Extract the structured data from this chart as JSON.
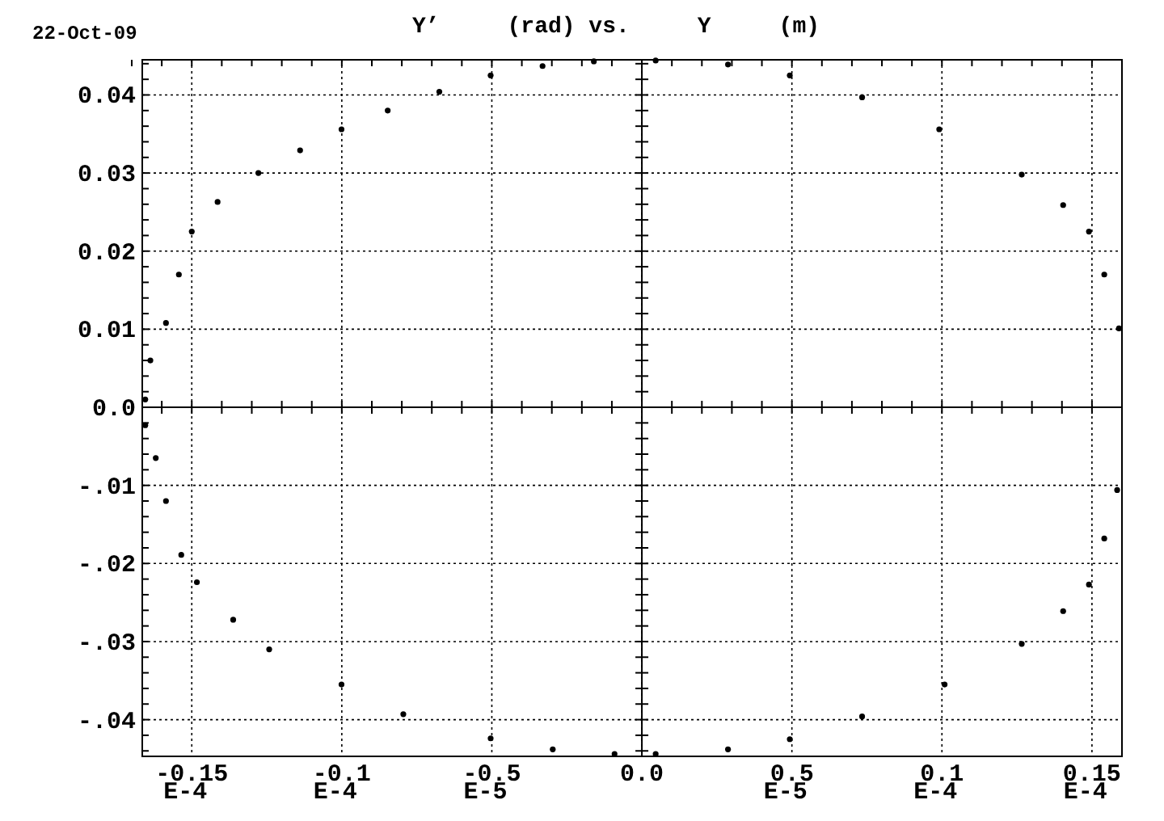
{
  "chart_data": {
    "type": "scatter",
    "title": "Y’     (rad) vs.     Y     (m)",
    "annotations": [
      "22-Oct-09"
    ],
    "x": [
      -1.655e-05,
      -1.638e-05,
      -1.586e-05,
      -1.543e-05,
      -1.5e-05,
      -1.414e-05,
      -1.278e-05,
      -1.139e-05,
      -1.001e-05,
      -8.47e-06,
      -6.75e-06,
      -5.04e-06,
      -3.31e-06,
      -1.6e-06,
      4.6e-07,
      2.87e-06,
      4.93e-06,
      7.34e-06,
      9.91e-06,
      1.266e-05,
      1.404e-05,
      1.49e-05,
      1.541e-05,
      1.59e-05,
      1.584e-05,
      1.541e-05,
      1.49e-05,
      1.404e-05,
      1.266e-05,
      1.009e-05,
      7.34e-06,
      4.93e-06,
      2.87e-06,
      4.6e-07,
      -9.1e-07,
      -2.97e-06,
      -5.04e-06,
      -7.95e-06,
      -1.001e-05,
      -1.242e-05,
      -1.362e-05,
      -1.483e-05,
      -1.535e-05,
      -1.586e-05,
      -1.62e-05,
      -1.655e-05
    ],
    "series": [
      {
        "color": "#000000",
        "values": [
          0.001,
          0.006,
          0.0108,
          0.017,
          0.0225,
          0.0263,
          0.03,
          0.0329,
          0.0356,
          0.038,
          0.0404,
          0.0425,
          0.0437,
          0.0443,
          0.0444,
          0.0439,
          0.0425,
          0.0397,
          0.0356,
          0.0298,
          0.0259,
          0.0225,
          0.017,
          0.0101,
          -0.0106,
          -0.0168,
          -0.0227,
          -0.0261,
          -0.0303,
          -0.0355,
          -0.0396,
          -0.0425,
          -0.0438,
          -0.0444,
          -0.0444,
          -0.0438,
          -0.0424,
          -0.0393,
          -0.0355,
          -0.031,
          -0.0272,
          -0.0224,
          -0.0189,
          -0.012,
          -0.0065,
          -0.0023
        ]
      }
    ],
    "xlim": [
      -1.665e-05,
      1.6e-05
    ],
    "xticks": [
      {
        "value": -1.5e-05,
        "label": "-0.15E-4"
      },
      {
        "value": -1e-05,
        "label": "-0.1E-4"
      },
      {
        "value": -5e-06,
        "label": "-0.5E-5"
      },
      {
        "value": 0,
        "label": "0.0"
      },
      {
        "value": 5e-06,
        "label": "0.5E-5"
      },
      {
        "value": 1e-05,
        "label": "0.1E-4"
      },
      {
        "value": 1.5e-05,
        "label": "0.15E-4"
      }
    ],
    "ylim": [
      -0.0447,
      0.0445
    ],
    "yticks": [
      {
        "value": -0.04,
        "label": "-.04"
      },
      {
        "value": -0.03,
        "label": "-.03"
      },
      {
        "value": -0.02,
        "label": "-.02"
      },
      {
        "value": -0.01,
        "label": "-.01"
      },
      {
        "value": 0,
        "label": "0.0"
      },
      0.01,
      0.02,
      0.03,
      0.04
    ],
    "grid": true,
    "marker": "circle"
  }
}
